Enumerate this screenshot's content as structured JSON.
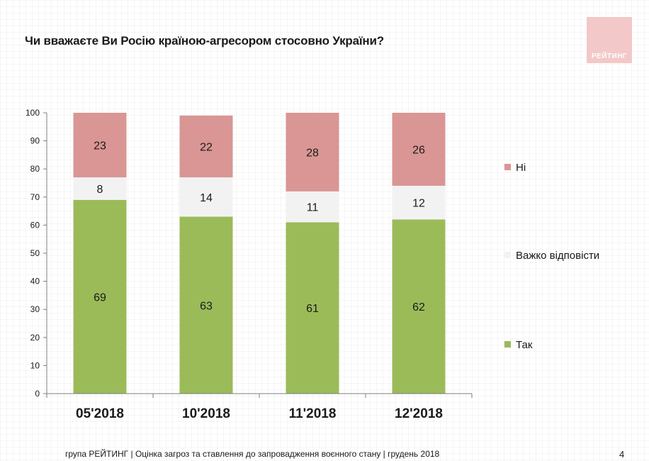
{
  "title": "Чи вважаєте Ви Росію країною-агресором стосовно України?",
  "logo": {
    "text": "РЕЙТИНГ",
    "color": "#f2c8c8"
  },
  "chart_data": {
    "type": "bar",
    "stacked": true,
    "categories": [
      "05'2018",
      "10'2018",
      "11'2018",
      "12'2018"
    ],
    "series": [
      {
        "name": "Так",
        "values": [
          69,
          63,
          61,
          62
        ],
        "color": "#9bbb59"
      },
      {
        "name": "Важко відповісти",
        "values": [
          8,
          14,
          11,
          12
        ],
        "color": "#f2f2f2"
      },
      {
        "name": "Ні",
        "values": [
          23,
          22,
          28,
          26
        ],
        "color": "#d99694"
      }
    ],
    "yticks": [
      0,
      10,
      20,
      30,
      40,
      50,
      60,
      70,
      80,
      90,
      100
    ],
    "ylim": [
      0,
      100
    ],
    "grid": false,
    "legend": "right"
  },
  "footer": "група РЕЙТИНГ | Оцінка загроз та ставлення до запровадження воєнного стану | грудень 2018",
  "page_number": "4"
}
